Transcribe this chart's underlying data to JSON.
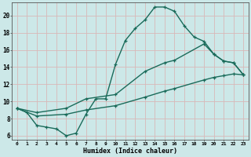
{
  "xlabel": "Humidex (Indice chaleur)",
  "bg_color": "#cce8e8",
  "grid_color": "#b0d0d0",
  "line_color": "#1a6b5a",
  "xlim": [
    -0.5,
    23.5
  ],
  "ylim": [
    5.5,
    21.5
  ],
  "xticks": [
    0,
    1,
    2,
    3,
    4,
    5,
    6,
    7,
    8,
    9,
    10,
    11,
    12,
    13,
    14,
    15,
    16,
    17,
    18,
    19,
    20,
    21,
    22,
    23
  ],
  "yticks": [
    6,
    8,
    10,
    12,
    14,
    16,
    18,
    20
  ],
  "curve1_x": [
    0,
    1,
    2,
    3,
    4,
    5,
    6,
    7,
    8,
    9,
    10,
    11,
    12,
    13,
    14,
    15,
    16,
    17,
    18,
    19,
    20,
    21,
    22,
    23
  ],
  "curve1_y": [
    9.2,
    8.7,
    7.2,
    7.0,
    6.8,
    6.0,
    6.3,
    8.5,
    10.3,
    10.3,
    14.3,
    17.1,
    18.5,
    19.5,
    21.0,
    21.0,
    20.5,
    18.8,
    17.5,
    17.0,
    15.5,
    14.7,
    14.5,
    13.1
  ],
  "curve2_x": [
    0,
    2,
    5,
    7,
    10,
    13,
    15,
    16,
    19,
    20,
    21,
    22,
    23
  ],
  "curve2_y": [
    9.2,
    8.7,
    9.2,
    10.3,
    10.8,
    13.5,
    14.5,
    14.8,
    16.7,
    15.5,
    14.7,
    14.5,
    13.1
  ],
  "curve3_x": [
    0,
    2,
    5,
    7,
    10,
    13,
    15,
    16,
    19,
    20,
    21,
    22,
    23
  ],
  "curve3_y": [
    9.2,
    8.3,
    8.5,
    9.0,
    9.5,
    10.5,
    11.2,
    11.5,
    12.5,
    12.8,
    13.0,
    13.2,
    13.1
  ]
}
